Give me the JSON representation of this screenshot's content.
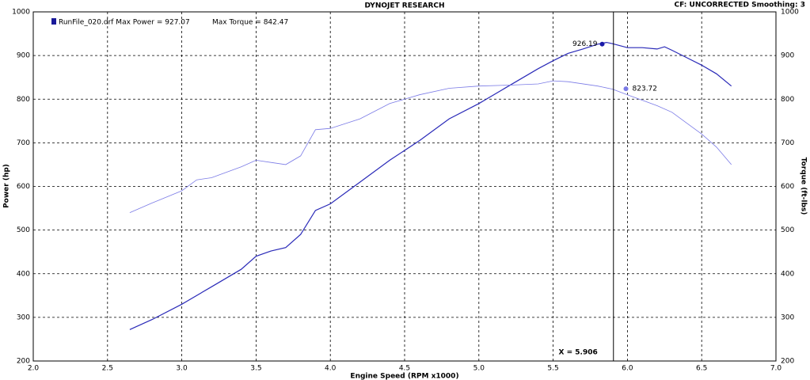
{
  "chart_data": {
    "type": "line",
    "title": "DYNOJET RESEARCH",
    "subtitle": "CF: UNCORRECTED  Smoothing: 3",
    "legend_text": [
      "RunFile_020.drf Max Power = 927.07",
      "Max Torque = 842.47"
    ],
    "legend_color": "#1a1a9a",
    "x_label": "Engine Speed (RPM x1000)",
    "y_label": "Power (hp)",
    "y2_label": "Torque (ft-lbs)",
    "xlim": [
      2,
      7
    ],
    "xticks": [
      {
        "value": 2,
        "label": "2.0"
      },
      2.5,
      {
        "value": 3,
        "label": "3.0"
      },
      3.5,
      {
        "value": 4,
        "label": "4.0"
      },
      4.5,
      {
        "value": 5,
        "label": "5.0"
      },
      5.5,
      {
        "value": 6,
        "label": "6.0"
      },
      6.5,
      {
        "value": 7,
        "label": "7.0"
      }
    ],
    "ylim": [
      200,
      1000
    ],
    "yticks": [
      200,
      300,
      400,
      500,
      600,
      700,
      800,
      900,
      1000
    ],
    "y2lim": [
      200,
      1000
    ],
    "y2ticks": [
      200,
      300,
      400,
      500,
      600,
      700,
      800,
      900,
      1000
    ],
    "grid": true,
    "series": [
      {
        "color": "#2a2ab8",
        "axis": "y",
        "x": [
          2.65,
          2.8,
          3.0,
          3.2,
          3.4,
          3.5,
          3.6,
          3.7,
          3.8,
          3.9,
          4.0,
          4.2,
          4.4,
          4.6,
          4.8,
          5.0,
          5.2,
          5.4,
          5.5,
          5.6,
          5.7,
          5.8,
          5.86,
          5.9,
          6.0,
          6.1,
          6.2,
          6.25,
          6.3,
          6.4,
          6.5,
          6.6,
          6.7
        ],
        "values": [
          272,
          295,
          330,
          370,
          410,
          440,
          452,
          460,
          490,
          545,
          560,
          610,
          660,
          705,
          755,
          790,
          830,
          870,
          888,
          905,
          915,
          926,
          930,
          927,
          918,
          918,
          915,
          920,
          912,
          895,
          878,
          858,
          830
        ]
      },
      {
        "color": "#7a7ae6",
        "axis": "y2",
        "x": [
          2.65,
          2.8,
          3.0,
          3.1,
          3.2,
          3.4,
          3.5,
          3.6,
          3.7,
          3.8,
          3.9,
          4.0,
          4.2,
          4.4,
          4.6,
          4.8,
          5.0,
          5.2,
          5.4,
          5.5,
          5.6,
          5.8,
          5.9,
          6.0,
          6.2,
          6.3,
          6.4,
          6.5,
          6.6,
          6.7
        ],
        "values": [
          540,
          562,
          590,
          615,
          620,
          645,
          660,
          655,
          650,
          670,
          730,
          733,
          755,
          790,
          810,
          825,
          830,
          832,
          835,
          842,
          840,
          830,
          823,
          810,
          785,
          770,
          745,
          720,
          690,
          650
        ]
      }
    ],
    "markers": [
      {
        "x": 5.83,
        "value": 926.19,
        "axis": "y",
        "color": "#1a1aa8"
      },
      {
        "x": 5.99,
        "value": 823.72,
        "axis": "y2",
        "color": "#7a7ae6"
      }
    ],
    "cursor": {
      "value": 5.906,
      "label": "X = 5.906"
    }
  }
}
